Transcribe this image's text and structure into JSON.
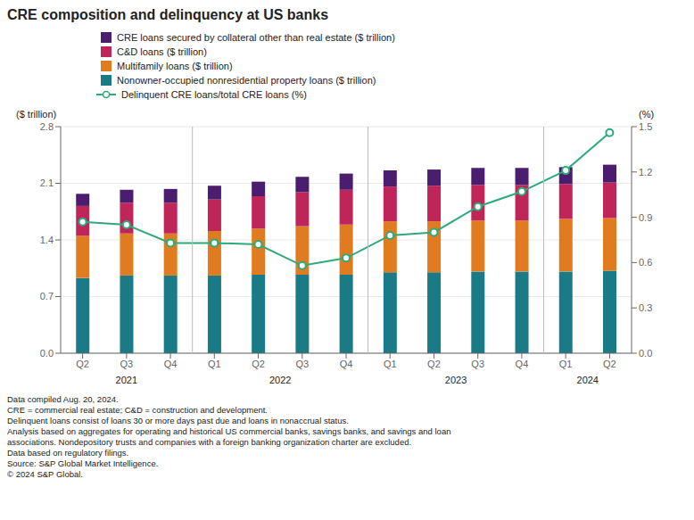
{
  "chart_data": {
    "type": "bar",
    "title": "CRE composition and delinquency at US banks",
    "ylabel": "($ trillion)",
    "y2label": "(%)",
    "categories": [
      "Q2",
      "Q3",
      "Q4",
      "Q1",
      "Q2",
      "Q3",
      "Q4",
      "Q1",
      "Q2",
      "Q3",
      "Q4",
      "Q1",
      "Q2"
    ],
    "year_groups": [
      {
        "label": "2021",
        "start": 0,
        "end": 2
      },
      {
        "label": "2022",
        "start": 3,
        "end": 6
      },
      {
        "label": "2023",
        "start": 7,
        "end": 10
      },
      {
        "label": "2024",
        "start": 11,
        "end": 12
      }
    ],
    "stacked": true,
    "grid": true,
    "legend": "upper left",
    "series": [
      {
        "name": "Nonowner-occupied nonresidential property loans ($ trillion)",
        "color": "#1a7a85",
        "values": [
          0.93,
          0.96,
          0.96,
          0.96,
          0.97,
          0.97,
          0.97,
          1.0,
          1.0,
          1.01,
          1.01,
          1.01,
          1.02
        ]
      },
      {
        "name": "Multifamily loans ($ trillion)",
        "color": "#e07b20",
        "values": [
          0.52,
          0.52,
          0.52,
          0.55,
          0.57,
          0.6,
          0.62,
          0.63,
          0.63,
          0.63,
          0.63,
          0.65,
          0.65
        ]
      },
      {
        "name": "C&D loans ($ trillion)",
        "color": "#c0255a",
        "values": [
          0.37,
          0.38,
          0.38,
          0.39,
          0.4,
          0.42,
          0.43,
          0.43,
          0.44,
          0.44,
          0.44,
          0.43,
          0.44
        ]
      },
      {
        "name": "CRE loans secured by collateral other than real estate ($ trillion)",
        "color": "#4b1d6e",
        "values": [
          0.15,
          0.16,
          0.17,
          0.17,
          0.18,
          0.19,
          0.2,
          0.2,
          0.2,
          0.21,
          0.21,
          0.21,
          0.22
        ]
      },
      {
        "name": "Delinquent CRE loans/total CRE loans (%)",
        "type": "line",
        "axis": "y2",
        "color": "#2daa7a",
        "marker": "circle",
        "values": [
          0.87,
          0.85,
          0.73,
          0.73,
          0.72,
          0.58,
          0.63,
          0.78,
          0.8,
          0.97,
          1.07,
          1.21,
          1.46
        ]
      }
    ],
    "ylim": [
      0,
      2.8
    ],
    "yticks": [
      {
        "value": 0,
        "label": "0.0"
      },
      0.7,
      1.4,
      2.1,
      2.8
    ],
    "y2lim": [
      0,
      1.5
    ],
    "y2ticks": [
      {
        "value": 0,
        "label": "0.0"
      },
      0.3,
      0.6,
      0.9,
      1.2,
      1.5
    ],
    "footnotes": [
      "Data compiled Aug. 20, 2024.",
      "CRE = commercial real estate; C&D = construction and development.",
      "Delinquent loans consist of loans 30 or more days past due and loans in nonaccrual status.",
      "Analysis based on aggregates for operating and historical US commercial banks, savings banks, and savings and loan",
      "associations. Nondepository trusts and companies with a foreign banking organization charter are excluded.",
      "Data based on regulatory filings.",
      "Source: S&P Global Market Intelligence.",
      "© 2024 S&P Global."
    ]
  }
}
